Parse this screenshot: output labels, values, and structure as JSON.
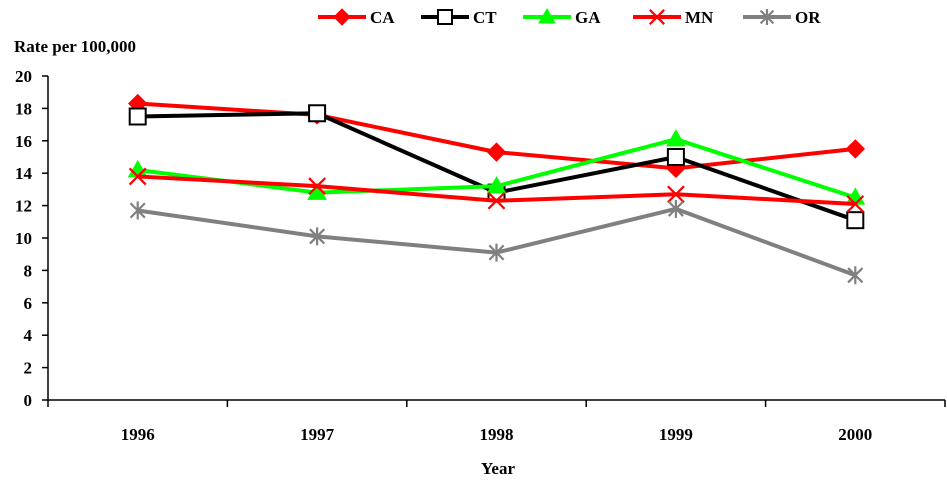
{
  "chart_data": {
    "type": "line",
    "categories": [
      "1996",
      "1997",
      "1998",
      "1999",
      "2000"
    ],
    "xlabel": "Year",
    "ylabel": "Rate per 100,000",
    "ylim": [
      0,
      20
    ],
    "yticks": [
      0,
      2,
      4,
      6,
      8,
      10,
      12,
      14,
      16,
      18,
      20
    ],
    "grid": false,
    "legend_position": "top",
    "series": [
      {
        "name": "CA",
        "color": "#ff0000",
        "marker": "diamond",
        "values": [
          18.3,
          17.6,
          15.3,
          14.3,
          15.5
        ]
      },
      {
        "name": "CT",
        "color": "#000000",
        "marker": "square",
        "values": [
          17.5,
          17.7,
          12.8,
          15.0,
          11.1
        ]
      },
      {
        "name": "GA",
        "color": "#00ff00",
        "marker": "triangle",
        "values": [
          14.2,
          12.8,
          13.2,
          16.1,
          12.5
        ]
      },
      {
        "name": "MN",
        "color": "#ff0000",
        "marker": "x",
        "values": [
          13.8,
          13.2,
          12.3,
          12.7,
          12.1
        ]
      },
      {
        "name": "OR",
        "color": "#808080",
        "marker": "star",
        "values": [
          11.7,
          10.1,
          9.1,
          11.8,
          7.7
        ]
      }
    ]
  }
}
